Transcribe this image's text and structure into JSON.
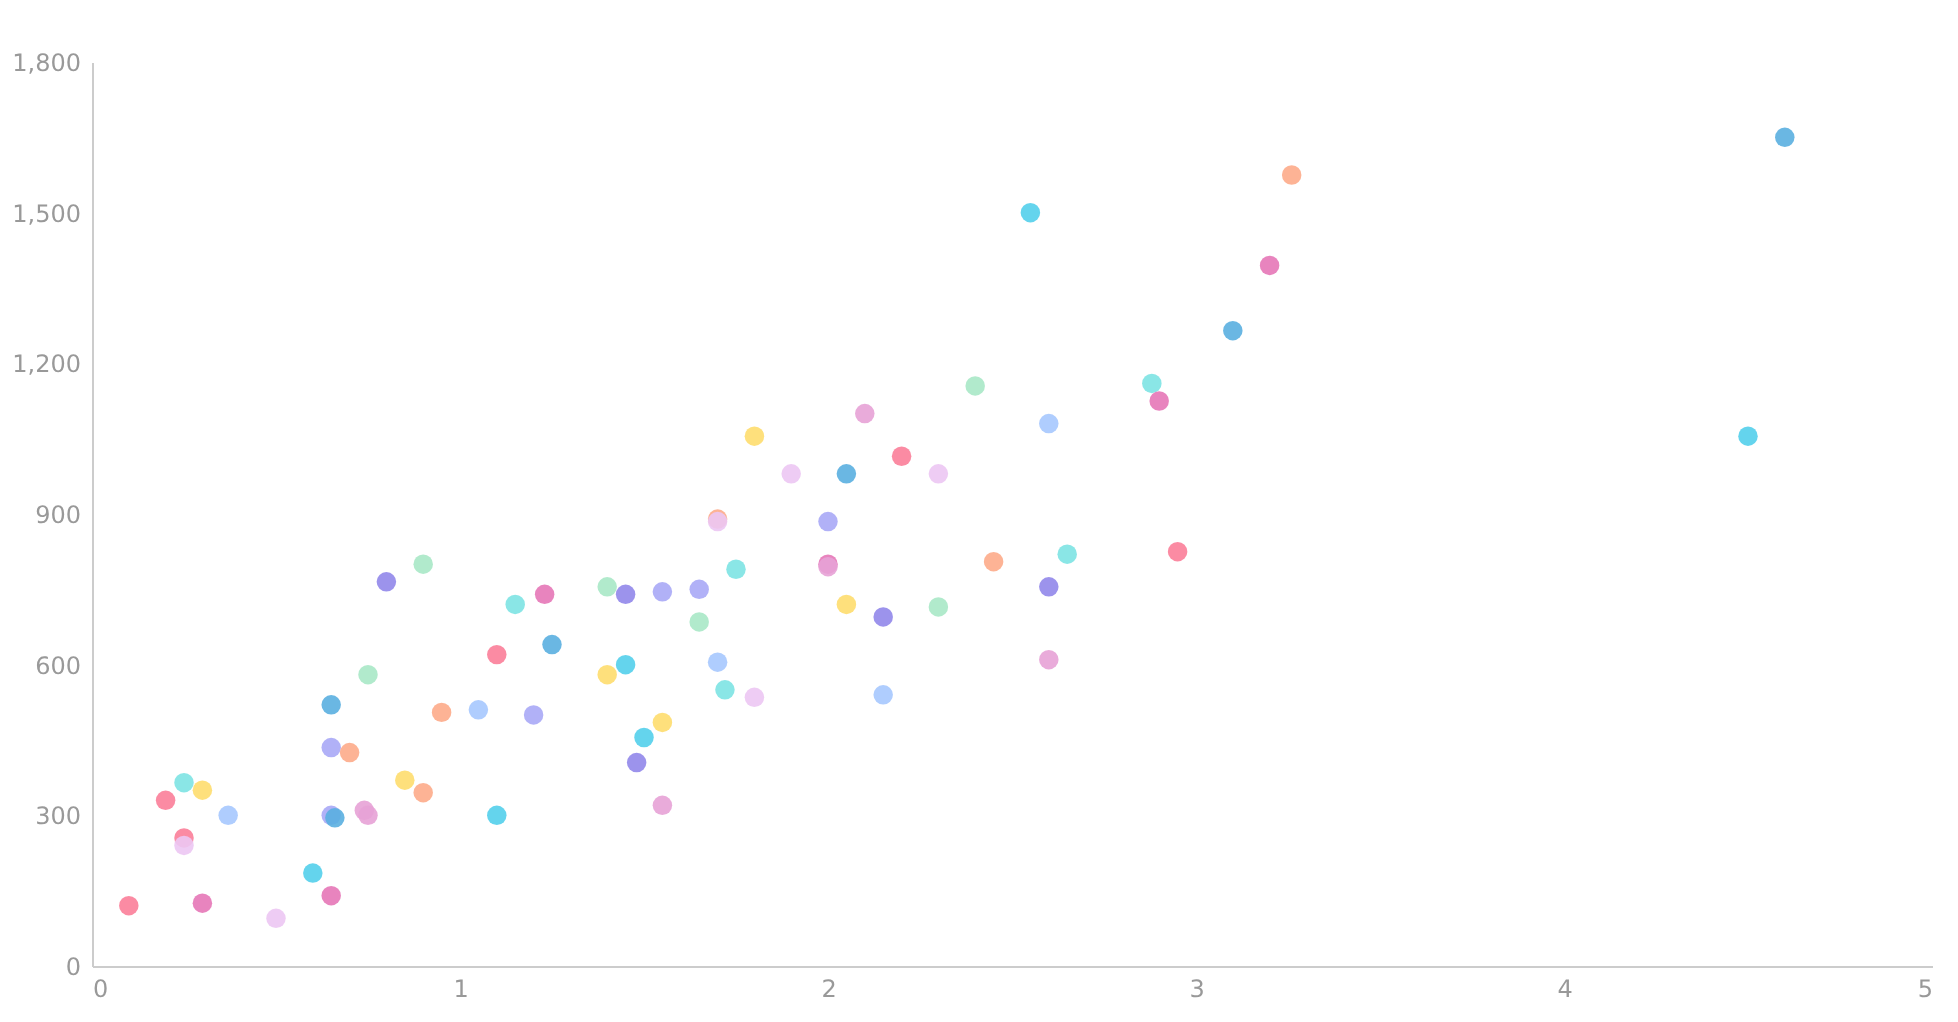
{
  "chart_data": {
    "type": "scatter",
    "marker": "circle",
    "grid": false,
    "xlim": [
      0,
      5
    ],
    "xticks": [
      0,
      1,
      2,
      3,
      4,
      5
    ],
    "ylim": [
      0,
      1800
    ],
    "yticks": [
      0,
      300,
      600,
      900,
      {
        "value": 1200,
        "label": "1,200"
      },
      {
        "value": 1500,
        "label": "1,500"
      },
      {
        "value": 1800,
        "label": "1,800"
      }
    ],
    "x": [
      0.1,
      0.2,
      0.25,
      0.25,
      0.25,
      0.3,
      0.3,
      0.37,
      0.5,
      0.6,
      0.65,
      0.65,
      0.65,
      0.66,
      0.65,
      0.7,
      0.74,
      0.75,
      0.75,
      0.8,
      0.85,
      0.9,
      0.9,
      0.95,
      1.05,
      1.1,
      1.1,
      1.15,
      1.2,
      1.23,
      1.25,
      1.4,
      1.4,
      1.45,
      1.45,
      1.48,
      1.5,
      1.55,
      1.55,
      1.55,
      1.65,
      1.65,
      1.7,
      1.7,
      1.7,
      1.72,
      1.75,
      1.8,
      1.8,
      1.9,
      2.0,
      2.0,
      2.0,
      2.05,
      2.05,
      2.1,
      2.15,
      2.15,
      2.2,
      2.3,
      2.3,
      2.4,
      2.45,
      2.55,
      2.6,
      2.6,
      2.6,
      2.65,
      2.88,
      2.9,
      2.95,
      3.1,
      3.2,
      3.26,
      4.5,
      4.6
    ],
    "values": [
      120,
      330,
      365,
      255,
      240,
      350,
      125,
      300,
      95,
      185,
      520,
      435,
      300,
      295,
      140,
      425,
      310,
      300,
      580,
      765,
      370,
      800,
      345,
      505,
      510,
      620,
      300,
      720,
      500,
      740,
      640,
      755,
      580,
      740,
      600,
      405,
      455,
      745,
      485,
      320,
      750,
      685,
      890,
      885,
      605,
      550,
      790,
      1055,
      535,
      980,
      885,
      800,
      795,
      980,
      720,
      1100,
      695,
      540,
      1015,
      980,
      715,
      1155,
      805,
      1500,
      1080,
      755,
      610,
      820,
      1160,
      1125,
      825,
      1265,
      1395,
      1575,
      1055,
      1650
    ],
    "colors": [
      "#fb7e99",
      "#fb7e99",
      "#7de3e3",
      "#fb7e99",
      "#ecc6f3",
      "#fedd6e",
      "#e577b7",
      "#a6c8fe",
      "#ecc6f3",
      "#53cfeb",
      "#5aafe0",
      "#a8a8f6",
      "#a8a8f6",
      "#5aafe0",
      "#e577b7",
      "#fdab8a",
      "#e7a2d6",
      "#e7a2d6",
      "#a9e8c7",
      "#9187ea",
      "#fedd6e",
      "#a9e8c7",
      "#fdab8a",
      "#fdab8a",
      "#a6c8fe",
      "#fb7e99",
      "#53cfeb",
      "#7de3e3",
      "#a8a8f6",
      "#e577b7",
      "#5aafe0",
      "#a9e8c7",
      "#fedd6e",
      "#9187ea",
      "#53cfeb",
      "#9187ea",
      "#53cfeb",
      "#a8a8f6",
      "#fedd6e",
      "#e7a2d6",
      "#a8a8f6",
      "#a9e8c7",
      "#fdab8a",
      "#ecc6f3",
      "#a6c8fe",
      "#7de3e3",
      "#7de3e3",
      "#fedd6e",
      "#ecc6f3",
      "#ecc6f3",
      "#a8a8f6",
      "#e577b7",
      "#e7a2d6",
      "#5aafe0",
      "#fedd6e",
      "#e7a2d6",
      "#9187ea",
      "#a6c8fe",
      "#fb7e99",
      "#ecc6f3",
      "#a9e8c7",
      "#a9e8c7",
      "#fdab8a",
      "#53cfeb",
      "#a6c8fe",
      "#9187ea",
      "#e7a2d6",
      "#7de3e3",
      "#7de3e3",
      "#e577b7",
      "#fb7e99",
      "#5aafe0",
      "#e577b7",
      "#fdab8a",
      "#53cfeb",
      "#5aafe0"
    ]
  }
}
